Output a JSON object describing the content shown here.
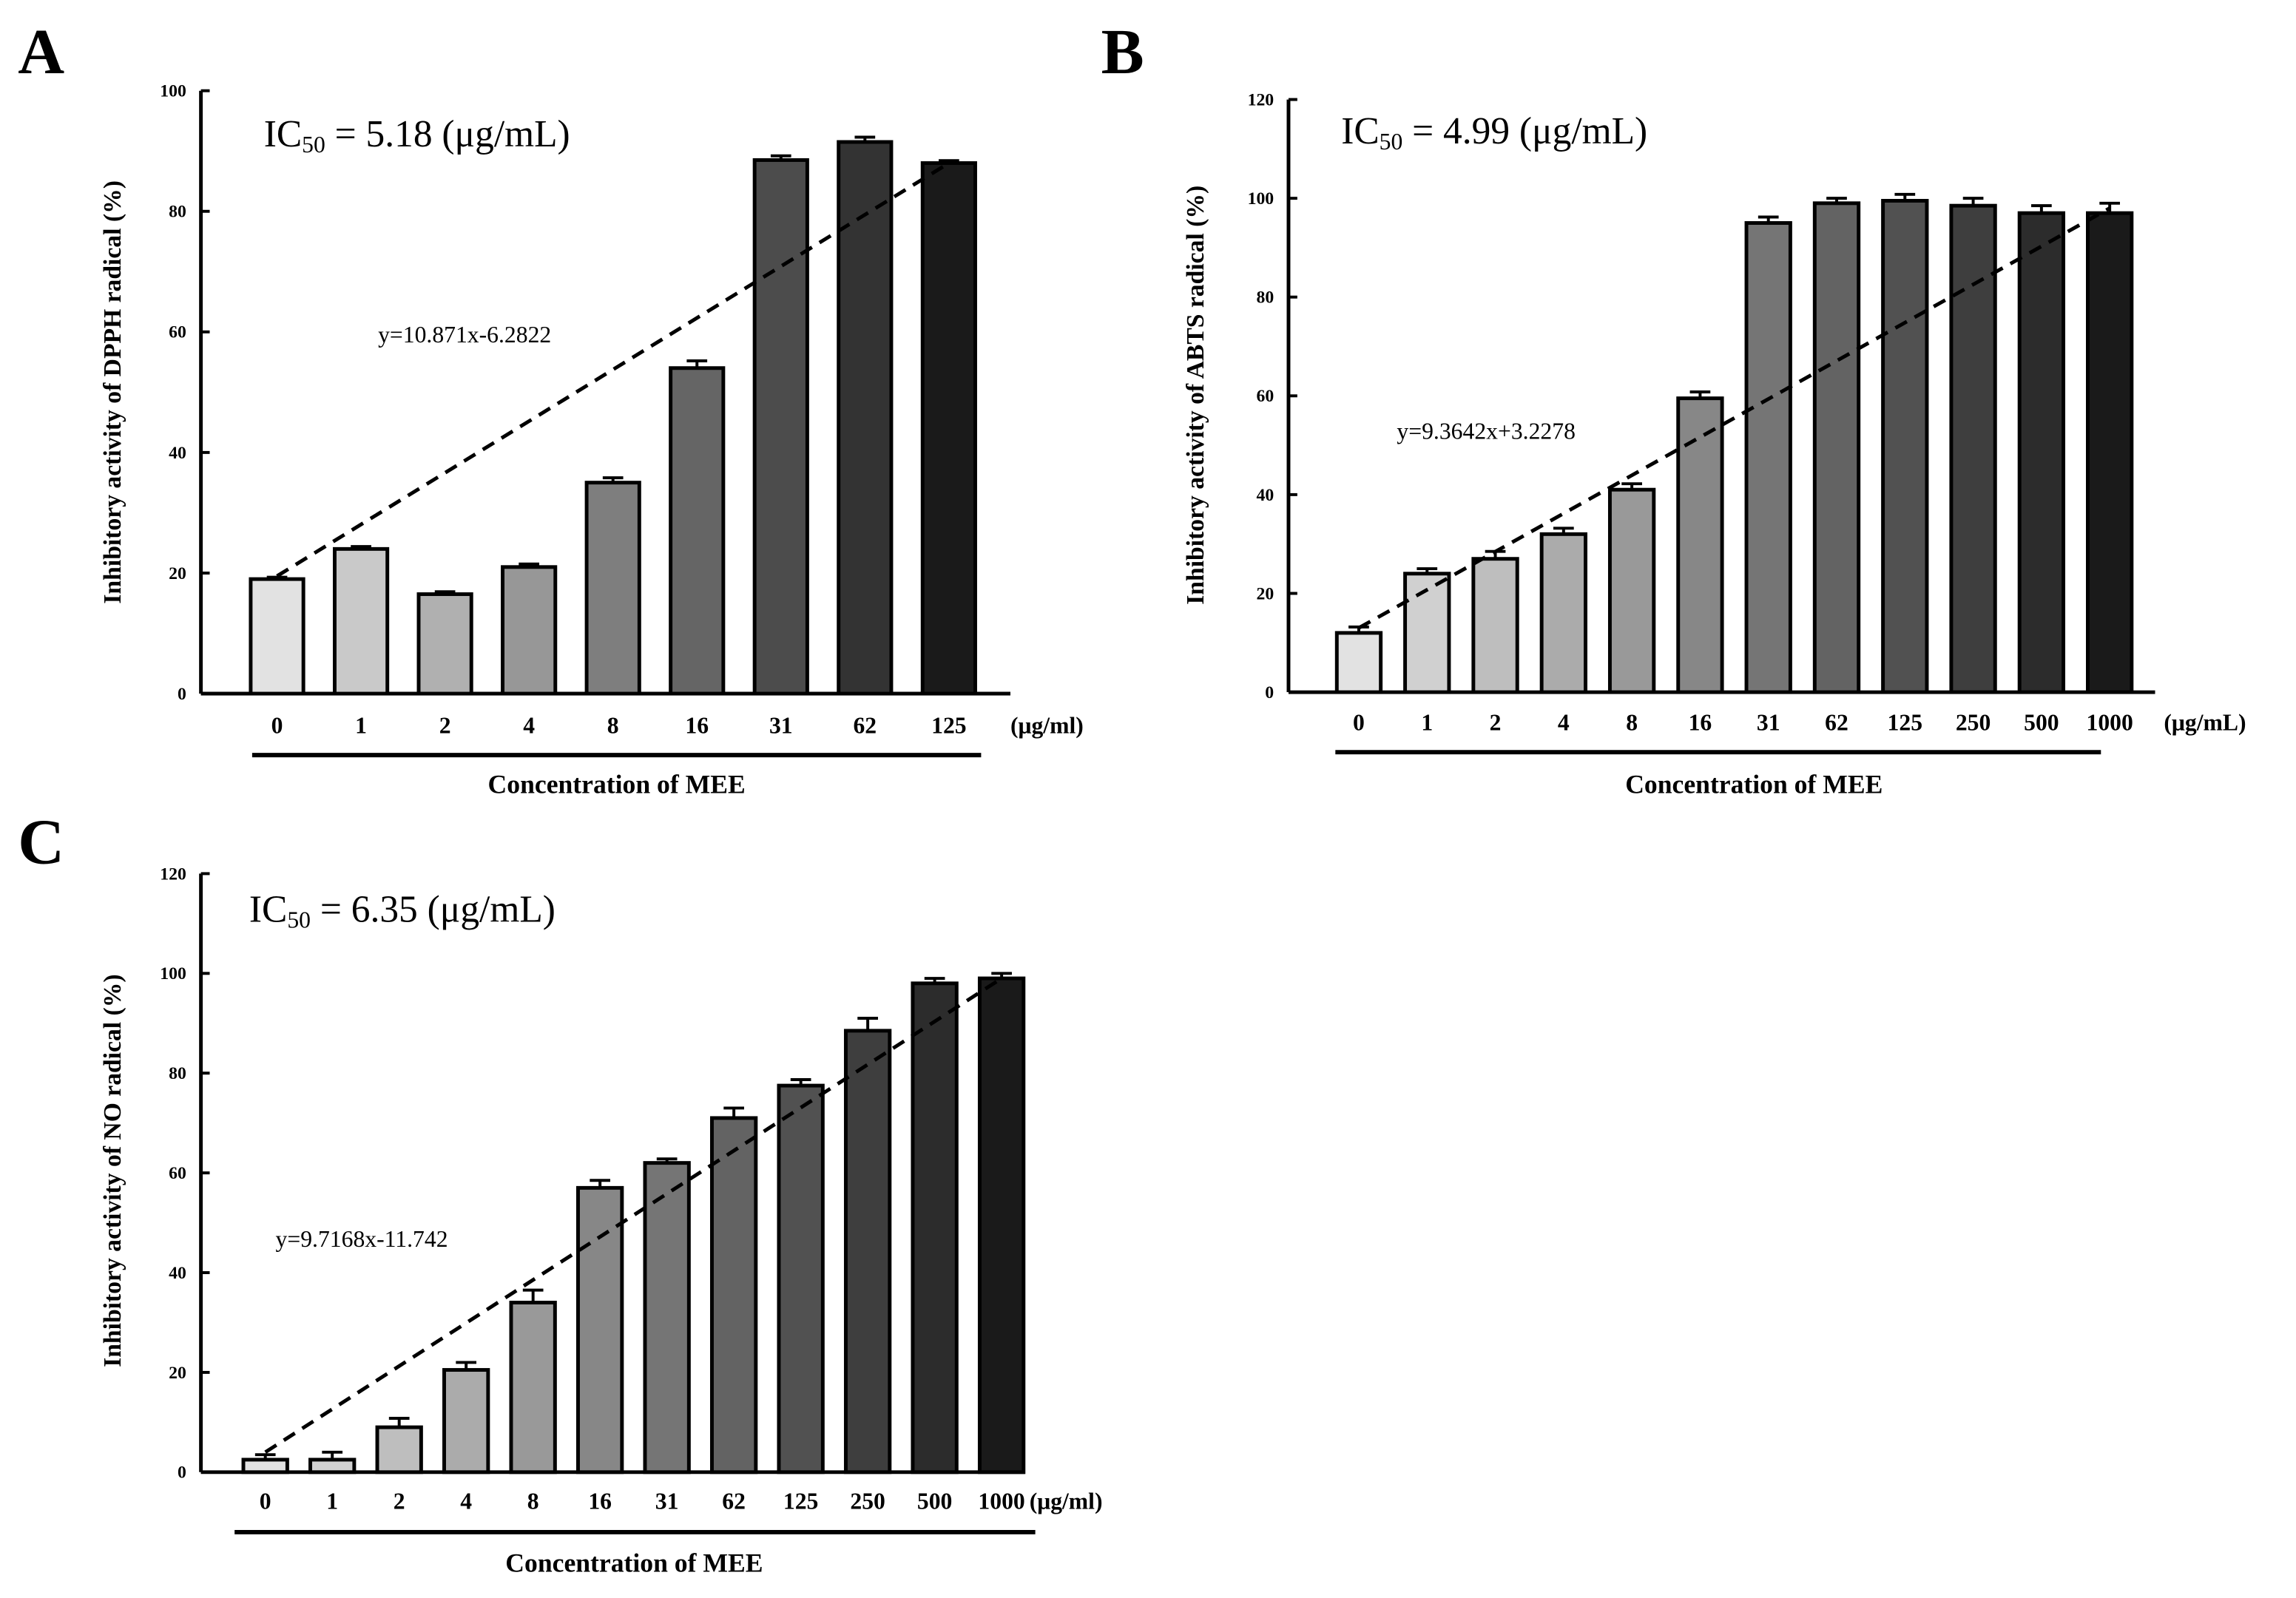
{
  "chart_data": [
    {
      "type": "bar",
      "panel_label": "A",
      "ic50": "IC50 = 5.18 (μg/mL)",
      "ic50_parts": {
        "pre": "IC",
        "sub": "50",
        "post": " = 5.18 (μg/mL)"
      },
      "equation": "y=10.871x-6.2822",
      "ylabel": "Inhibitory  activity of DPPH radical  (%)",
      "xlabel": "Concentration  of MEE",
      "unit": "(μg/ml)",
      "ylim": [
        0,
        100
      ],
      "yticks": [
        0,
        20,
        40,
        60,
        80,
        100
      ],
      "categories": [
        "0",
        "1",
        "2",
        "4",
        "8",
        "16",
        "31",
        "62",
        "125"
      ],
      "values": [
        19,
        24,
        16.5,
        21,
        35,
        54,
        88.5,
        91.5,
        88
      ],
      "errors": [
        0.3,
        0.4,
        0.4,
        0.5,
        0.8,
        1.2,
        0.7,
        0.8,
        0.4
      ],
      "trendline": {
        "start": 19.5,
        "end": 88
      }
    },
    {
      "type": "bar",
      "panel_label": "B",
      "ic50": "IC50 = 4.99 (μg/mL)",
      "ic50_parts": {
        "pre": "IC",
        "sub": "50",
        "post": " = 4.99 (μg/mL)"
      },
      "equation": "y=9.3642x+3.2278",
      "ylabel": "Inhibitory  activity of ABTS radical  (%)",
      "xlabel": "Concentration  of MEE",
      "unit": "(μg/mL)",
      "ylim": [
        0,
        120
      ],
      "yticks": [
        0,
        20,
        40,
        60,
        80,
        100,
        120
      ],
      "categories": [
        "0",
        "1",
        "2",
        "4",
        "8",
        "16",
        "31",
        "62",
        "125",
        "250",
        "500",
        "1000"
      ],
      "values": [
        12,
        24,
        27,
        32,
        41,
        59.5,
        95,
        99,
        99.5,
        98.5,
        97,
        97
      ],
      "errors": [
        1.2,
        1.0,
        1.5,
        1.2,
        1.2,
        1.3,
        1.2,
        1.0,
        1.3,
        1.5,
        1.5,
        2.0
      ],
      "trendline": {
        "start": 13,
        "end": 98
      }
    },
    {
      "type": "bar",
      "panel_label": "C",
      "ic50": "IC50 = 6.35 (μg/mL)",
      "ic50_parts": {
        "pre": "IC",
        "sub": "50",
        "post": " = 6.35 (μg/mL)"
      },
      "equation": "y=9.7168x-11.742",
      "ylabel": "Inhibitory  activity of NO radical  (%)",
      "xlabel": "Concentration  of MEE",
      "unit": "(μg/ml)",
      "ylim": [
        0,
        120
      ],
      "yticks": [
        0,
        20,
        40,
        60,
        80,
        100,
        120
      ],
      "categories": [
        "0",
        "1",
        "2",
        "4",
        "8",
        "16",
        "31",
        "62",
        "125",
        "250",
        "500",
        "1000"
      ],
      "values": [
        2.5,
        2.5,
        9,
        20.5,
        34,
        57,
        62,
        71,
        77.5,
        88.5,
        98,
        99
      ],
      "errors": [
        1.0,
        1.5,
        1.8,
        1.5,
        2.5,
        1.5,
        0.8,
        2.0,
        1.2,
        2.5,
        1.0,
        1.0
      ],
      "trendline": {
        "start": 4,
        "end": 99
      }
    }
  ]
}
